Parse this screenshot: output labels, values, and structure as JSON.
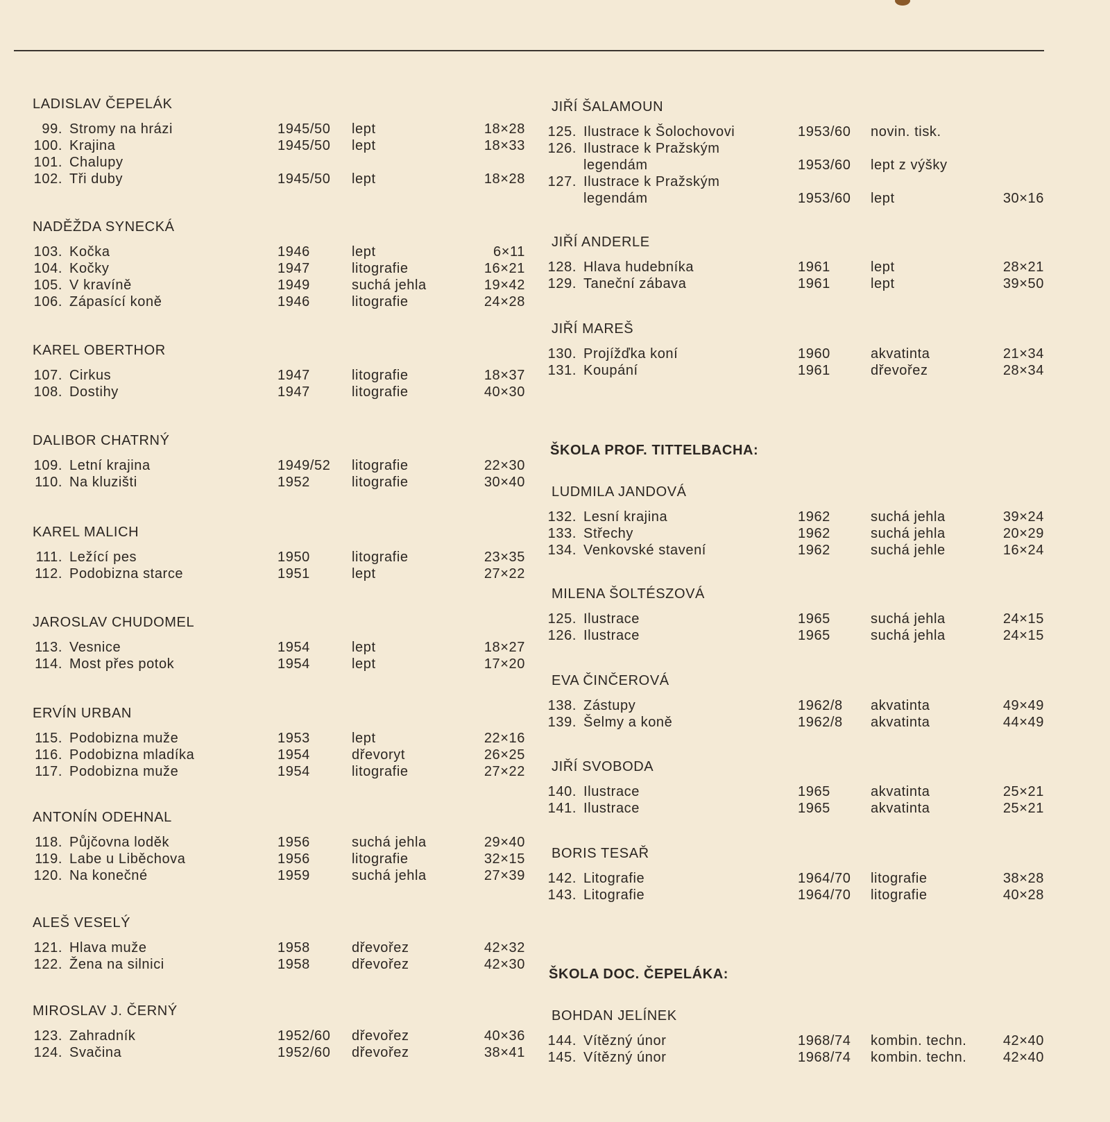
{
  "left_column": [
    {
      "artist": "LADISLAV ČEPELÁK",
      "works": [
        {
          "no": "99.",
          "title": "Stromy na hrázi",
          "year": "1945/50",
          "technique": "lept",
          "size": "18×28"
        },
        {
          "no": "100.",
          "title": "Krajina",
          "year": "1945/50",
          "technique": "lept",
          "size": "18×33"
        },
        {
          "no": "101.",
          "title": "Chalupy",
          "year": "",
          "technique": "",
          "size": ""
        },
        {
          "no": "102.",
          "title": "Tři duby",
          "year": "1945/50",
          "technique": "lept",
          "size": "18×28"
        }
      ]
    },
    {
      "artist": "NADĚŽDA SYNECKÁ",
      "works": [
        {
          "no": "103.",
          "title": "Kočka",
          "year": "1946",
          "technique": "lept",
          "size": "6×11"
        },
        {
          "no": "104.",
          "title": "Kočky",
          "year": "1947",
          "technique": "litografie",
          "size": "16×21"
        },
        {
          "no": "105.",
          "title": "V kravíně",
          "year": "1949",
          "technique": "suchá jehla",
          "size": "19×42"
        },
        {
          "no": "106.",
          "title": "Zápasící koně",
          "year": "1946",
          "technique": "litografie",
          "size": "24×28"
        }
      ]
    },
    {
      "artist": "KAREL OBERTHOR",
      "works": [
        {
          "no": "107.",
          "title": "Cirkus",
          "year": "1947",
          "technique": "litografie",
          "size": "18×37"
        },
        {
          "no": "108.",
          "title": "Dostihy",
          "year": "1947",
          "technique": "litografie",
          "size": "40×30"
        }
      ]
    },
    {
      "artist": "DALIBOR CHATRNÝ",
      "works": [
        {
          "no": "109.",
          "title": "Letní krajina",
          "year": "1949/52",
          "technique": "litografie",
          "size": "22×30"
        },
        {
          "no": "110.",
          "title": "Na kluzišti",
          "year": "1952",
          "technique": "litografie",
          "size": "30×40"
        }
      ]
    },
    {
      "artist": "KAREL MALICH",
      "works": [
        {
          "no": "111.",
          "title": "Ležící pes",
          "year": "1950",
          "technique": "litografie",
          "size": "23×35"
        },
        {
          "no": "112.",
          "title": "Podobizna starce",
          "year": "1951",
          "technique": "lept",
          "size": "27×22"
        }
      ]
    },
    {
      "artist": "JAROSLAV CHUDOMEL",
      "works": [
        {
          "no": "113.",
          "title": "Vesnice",
          "year": "1954",
          "technique": "lept",
          "size": "18×27"
        },
        {
          "no": "114.",
          "title": "Most přes potok",
          "year": "1954",
          "technique": "lept",
          "size": "17×20"
        }
      ]
    },
    {
      "artist": "ERVÍN URBAN",
      "works": [
        {
          "no": "115.",
          "title": "Podobizna muže",
          "year": "1953",
          "technique": "lept",
          "size": "22×16"
        },
        {
          "no": "116.",
          "title": "Podobizna mladíka",
          "year": "1954",
          "technique": "dřevoryt",
          "size": "26×25"
        },
        {
          "no": "117.",
          "title": "Podobizna muže",
          "year": "1954",
          "technique": "litografie",
          "size": "27×22"
        }
      ]
    },
    {
      "artist": "ANTONÍN ODEHNAL",
      "works": [
        {
          "no": "118.",
          "title": "Půjčovna loděk",
          "year": "1956",
          "technique": "suchá jehla",
          "size": "29×40"
        },
        {
          "no": "119.",
          "title": "Labe u Liběchova",
          "year": "1956",
          "technique": "litografie",
          "size": "32×15"
        },
        {
          "no": "120.",
          "title": "Na konečné",
          "year": "1959",
          "technique": "suchá jehla",
          "size": "27×39"
        }
      ]
    },
    {
      "artist": "ALEŠ VESELÝ",
      "works": [
        {
          "no": "121.",
          "title": "Hlava muže",
          "year": "1958",
          "technique": "dřevořez",
          "size": "42×32"
        },
        {
          "no": "122.",
          "title": "Žena na silnici",
          "year": "1958",
          "technique": "dřevořez",
          "size": "42×30"
        }
      ]
    },
    {
      "artist": "MIROSLAV J. ČERNÝ",
      "works": [
        {
          "no": "123.",
          "title": "Zahradník",
          "year": "1952/60",
          "technique": "dřevořez",
          "size": "40×36"
        },
        {
          "no": "124.",
          "title": "Svačina",
          "year": "1952/60",
          "technique": "dřevořez",
          "size": "38×41"
        }
      ]
    }
  ],
  "right_column": [
    {
      "artist": "JIŘÍ ŠALAMOUN",
      "works": [
        {
          "no": "125.",
          "title": "Ilustrace k Šolochovovi",
          "year": "1953/60",
          "technique": "novin. tisk.",
          "size": ""
        },
        {
          "no": "126.",
          "title": "Ilustrace k Pražským",
          "title_cont": "legendám",
          "year": "1953/60",
          "technique": "lept z výšky",
          "size": ""
        },
        {
          "no": "127.",
          "title": "Ilustrace k Pražským",
          "title_cont": "legendám",
          "year": "1953/60",
          "technique": "lept",
          "size": "30×16"
        }
      ]
    },
    {
      "artist": "JIŘÍ ANDERLE",
      "works": [
        {
          "no": "128.",
          "title": "Hlava hudebníka",
          "year": "1961",
          "technique": "lept",
          "size": "28×21"
        },
        {
          "no": "129.",
          "title": "Taneční zábava",
          "year": "1961",
          "technique": "lept",
          "size": "39×50"
        }
      ]
    },
    {
      "artist": "JIŘÍ MAREŠ",
      "works": [
        {
          "no": "130.",
          "title": "Projížďka koní",
          "year": "1960",
          "technique": "akvatinta",
          "size": "21×34"
        },
        {
          "no": "131.",
          "title": "Koupání",
          "year": "1961",
          "technique": "dřevořez",
          "size": "28×34"
        }
      ]
    },
    {
      "artist": "LUDMILA JANDOVÁ",
      "works": [
        {
          "no": "132.",
          "title": "Lesní krajina",
          "year": "1962",
          "technique": "suchá jehla",
          "size": "39×24"
        },
        {
          "no": "133.",
          "title": "Střechy",
          "year": "1962",
          "technique": "suchá jehla",
          "size": "20×29"
        },
        {
          "no": "134.",
          "title": "Venkovské stavení",
          "year": "1962",
          "technique": "suchá jehle",
          "size": "16×24"
        }
      ]
    },
    {
      "artist": "MILENA ŠOLTÉSZOVÁ",
      "works": [
        {
          "no": "125.",
          "title": "Ilustrace",
          "year": "1965",
          "technique": "suchá jehla",
          "size": "24×15"
        },
        {
          "no": "126.",
          "title": "Ilustrace",
          "year": "1965",
          "technique": "suchá jehla",
          "size": "24×15"
        }
      ]
    },
    {
      "artist": "EVA ČINČEROVÁ",
      "works": [
        {
          "no": "138.",
          "title": "Zástupy",
          "year": "1962/8",
          "technique": "akvatinta",
          "size": "49×49"
        },
        {
          "no": "139.",
          "title": "Šelmy a koně",
          "year": "1962/8",
          "technique": "akvatinta",
          "size": "44×49"
        }
      ]
    },
    {
      "artist": "JIŘÍ SVOBODA",
      "works": [
        {
          "no": "140.",
          "title": "Ilustrace",
          "year": "1965",
          "technique": "akvatinta",
          "size": "25×21"
        },
        {
          "no": "141.",
          "title": "Ilustrace",
          "year": "1965",
          "technique": "akvatinta",
          "size": "25×21"
        }
      ]
    },
    {
      "artist": "BORIS TESAŘ",
      "works": [
        {
          "no": "142.",
          "title": "Litografie",
          "year": "1964/70",
          "technique": "litografie",
          "size": "38×28"
        },
        {
          "no": "143.",
          "title": "Litografie",
          "year": "1964/70",
          "technique": "litografie",
          "size": "40×28"
        }
      ]
    },
    {
      "artist": "BOHDAN JELÍNEK",
      "works": [
        {
          "no": "144.",
          "title": "Vítězný únor",
          "year": "1968/74",
          "technique": "kombin. techn.",
          "size": "42×40"
        },
        {
          "no": "145.",
          "title": "Vítězný únor",
          "year": "1968/74",
          "technique": "kombin. techn.",
          "size": "42×40"
        }
      ]
    }
  ],
  "schools": [
    "ŠKOLA PROF. TITTELBACHA:",
    "ŠKOLA DOC. ČEPELÁKA:"
  ]
}
